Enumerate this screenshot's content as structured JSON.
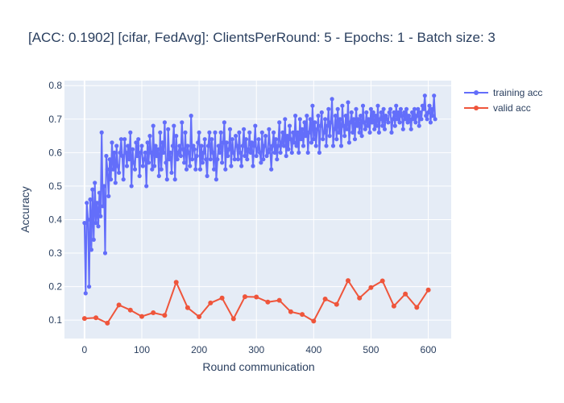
{
  "chart_data": {
    "type": "line",
    "title": "[ACC: 0.1902] [cifar, FedAvg]: ClientsPerRound: 5 - Epochs: 1 - Batch size: 3",
    "xlabel": "Round communication",
    "ylabel": "Accuracy",
    "xlim": [
      -35,
      640
    ],
    "ylim": [
      0.045,
      0.815
    ],
    "x_ticks": [
      0,
      100,
      200,
      300,
      400,
      500,
      600
    ],
    "y_ticks": [
      0.1,
      0.2,
      0.3,
      0.4,
      0.5,
      0.6,
      0.7,
      0.8
    ],
    "grid": true,
    "legend_position": "top-right",
    "colors": {
      "training": "#636efa",
      "valid": "#ef553b",
      "plot_bg": "#e5ecf6",
      "text": "#2a3f5f"
    },
    "series": [
      {
        "name": "training acc",
        "x_step": 2,
        "x_start": 0,
        "values": [
          0.39,
          0.18,
          0.45,
          0.4,
          0.2,
          0.46,
          0.31,
          0.49,
          0.34,
          0.51,
          0.39,
          0.45,
          0.38,
          0.48,
          0.41,
          0.66,
          0.44,
          0.5,
          0.3,
          0.59,
          0.55,
          0.47,
          0.58,
          0.52,
          0.63,
          0.55,
          0.6,
          0.51,
          0.62,
          0.56,
          0.54,
          0.6,
          0.64,
          0.59,
          0.52,
          0.64,
          0.6,
          0.56,
          0.62,
          0.58,
          0.66,
          0.5,
          0.61,
          0.57,
          0.55,
          0.63,
          0.59,
          0.64,
          0.53,
          0.6,
          0.62,
          0.56,
          0.58,
          0.6,
          0.5,
          0.63,
          0.57,
          0.65,
          0.6,
          0.55,
          0.68,
          0.56,
          0.62,
          0.59,
          0.61,
          0.53,
          0.66,
          0.55,
          0.63,
          0.6,
          0.69,
          0.57,
          0.52,
          0.67,
          0.58,
          0.6,
          0.54,
          0.62,
          0.68,
          0.52,
          0.65,
          0.58,
          0.6,
          0.62,
          0.59,
          0.69,
          0.61,
          0.57,
          0.66,
          0.55,
          0.62,
          0.6,
          0.56,
          0.71,
          0.58,
          0.62,
          0.61,
          0.55,
          0.59,
          0.63,
          0.66,
          0.55,
          0.62,
          0.57,
          0.6,
          0.64,
          0.58,
          0.53,
          0.62,
          0.66,
          0.58,
          0.64,
          0.6,
          0.55,
          0.66,
          0.52,
          0.58,
          0.62,
          0.6,
          0.66,
          0.57,
          0.63,
          0.69,
          0.55,
          0.63,
          0.59,
          0.61,
          0.67,
          0.56,
          0.64,
          0.6,
          0.58,
          0.65,
          0.62,
          0.58,
          0.66,
          0.6,
          0.56,
          0.62,
          0.67,
          0.59,
          0.64,
          0.58,
          0.61,
          0.66,
          0.6,
          0.63,
          0.56,
          0.62,
          0.68,
          0.59,
          0.61,
          0.64,
          0.6,
          0.57,
          0.66,
          0.58,
          0.62,
          0.65,
          0.59,
          0.6,
          0.67,
          0.61,
          0.55,
          0.62,
          0.66,
          0.6,
          0.64,
          0.58,
          0.62,
          0.69,
          0.6,
          0.63,
          0.66,
          0.62,
          0.7,
          0.59,
          0.65,
          0.61,
          0.68,
          0.64,
          0.6,
          0.66,
          0.63,
          0.71,
          0.62,
          0.66,
          0.6,
          0.7,
          0.64,
          0.67,
          0.62,
          0.69,
          0.65,
          0.71,
          0.6,
          0.66,
          0.7,
          0.63,
          0.74,
          0.64,
          0.69,
          0.62,
          0.67,
          0.71,
          0.6,
          0.68,
          0.72,
          0.64,
          0.66,
          0.7,
          0.62,
          0.68,
          0.73,
          0.65,
          0.69,
          0.76,
          0.62,
          0.67,
          0.71,
          0.64,
          0.73,
          0.66,
          0.7,
          0.62,
          0.74,
          0.68,
          0.65,
          0.71,
          0.67,
          0.75,
          0.63,
          0.69,
          0.72,
          0.66,
          0.7,
          0.64,
          0.73,
          0.68,
          0.7,
          0.66,
          0.71,
          0.65,
          0.74,
          0.69,
          0.67,
          0.72,
          0.68,
          0.7,
          0.66,
          0.73,
          0.69,
          0.72,
          0.67,
          0.71,
          0.68,
          0.74,
          0.66,
          0.7,
          0.72,
          0.68,
          0.73,
          0.67,
          0.71,
          0.7,
          0.69,
          0.72,
          0.73,
          0.66,
          0.7,
          0.72,
          0.68,
          0.74,
          0.7,
          0.72,
          0.69,
          0.73,
          0.71,
          0.67,
          0.72,
          0.7,
          0.73,
          0.69,
          0.71,
          0.7,
          0.67,
          0.72,
          0.7,
          0.73,
          0.69,
          0.71,
          0.73,
          0.68,
          0.72,
          0.7,
          0.74,
          0.73,
          0.77,
          0.71,
          0.7,
          0.72,
          0.74,
          0.69,
          0.73,
          0.71,
          0.77,
          0.7
        ]
      },
      {
        "name": "valid acc",
        "x": [
          0,
          20,
          40,
          60,
          80,
          100,
          120,
          140,
          160,
          180,
          200,
          220,
          240,
          260,
          280,
          300,
          320,
          340,
          360,
          380,
          400,
          420,
          440,
          460,
          480,
          500,
          520,
          540,
          560,
          580,
          600
        ],
        "values": [
          0.105,
          0.107,
          0.091,
          0.145,
          0.13,
          0.111,
          0.122,
          0.114,
          0.213,
          0.137,
          0.11,
          0.151,
          0.166,
          0.104,
          0.17,
          0.169,
          0.154,
          0.159,
          0.125,
          0.117,
          0.097,
          0.163,
          0.147,
          0.218,
          0.166,
          0.197,
          0.217,
          0.142,
          0.178,
          0.138,
          0.19
        ]
      }
    ]
  }
}
